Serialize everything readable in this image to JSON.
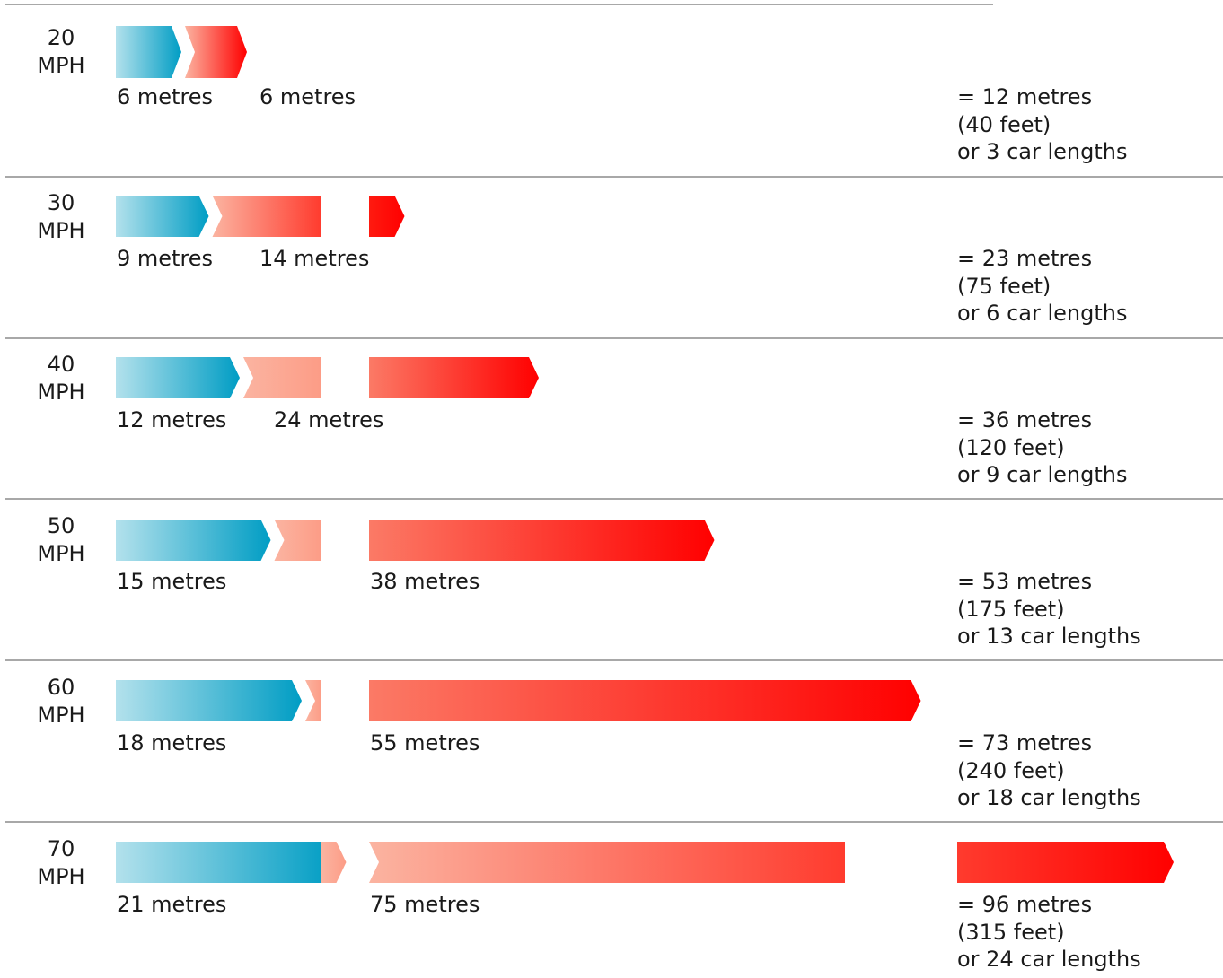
{
  "chart_data": {
    "type": "bar",
    "colors": {
      "thinking_start": "#b3e1ec",
      "thinking_end": "#009dc4",
      "braking_start": "#fbb4a1",
      "braking_end": "#ff0000"
    },
    "rows": [
      {
        "speed": "20",
        "unit": "MPH",
        "thinking_m": 6,
        "braking_m": 6,
        "thinking_label": "6 metres",
        "braking_label": "6 metres",
        "total": "= 12 metres",
        "feet": "(40 feet)",
        "cars": "or 3 car lengths"
      },
      {
        "speed": "30",
        "unit": "MPH",
        "thinking_m": 9,
        "braking_m": 14,
        "thinking_label": "9 metres",
        "braking_label": "14 metres",
        "total": "= 23 metres",
        "feet": "(75 feet)",
        "cars": "or 6 car lengths"
      },
      {
        "speed": "40",
        "unit": "MPH",
        "thinking_m": 12,
        "braking_m": 24,
        "thinking_label": "12 metres",
        "braking_label": "24 metres",
        "total": "= 36 metres",
        "feet": "(120 feet)",
        "cars": "or 9 car lengths"
      },
      {
        "speed": "50",
        "unit": "MPH",
        "thinking_m": 15,
        "braking_m": 38,
        "thinking_label": "15 metres",
        "braking_label": "38 metres",
        "total": "= 53 metres",
        "feet": "(175 feet)",
        "cars": "or 13 car lengths"
      },
      {
        "speed": "60",
        "unit": "MPH",
        "thinking_m": 18,
        "braking_m": 55,
        "thinking_label": "18 metres",
        "braking_label": "55 metres",
        "total": "= 73 metres",
        "feet": "(240 feet)",
        "cars": "or 18 car lengths"
      },
      {
        "speed": "70",
        "unit": "MPH",
        "thinking_m": 21,
        "braking_m": 75,
        "thinking_label": "21 metres",
        "braking_label": "75 metres",
        "total": "= 96 metres",
        "feet": "(315 feet)",
        "cars": "or 24 car lengths"
      }
    ]
  }
}
